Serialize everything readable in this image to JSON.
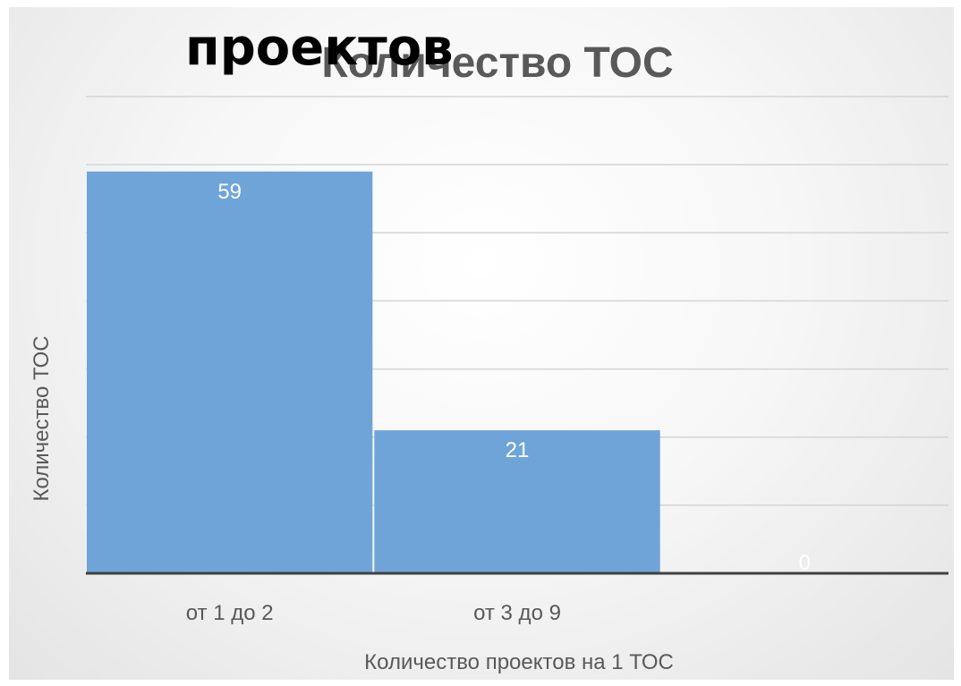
{
  "chart_data": {
    "type": "bar",
    "title": "Количество ТОС",
    "overlay_title": "проектов",
    "categories": [
      "от 1 до 2",
      "от 3 до 9",
      ""
    ],
    "values": [
      59,
      21,
      0
    ],
    "data_labels": [
      "59",
      "21",
      "0"
    ],
    "xlabel": "Количество проектов на 1 ТОС",
    "ylabel": "Количество ТОС",
    "ylim": [
      0,
      70
    ],
    "grid": true,
    "legend": "none",
    "bar_color": "#6fa4d8",
    "data_label_color": "#ffffff",
    "text_color": "#595959"
  }
}
